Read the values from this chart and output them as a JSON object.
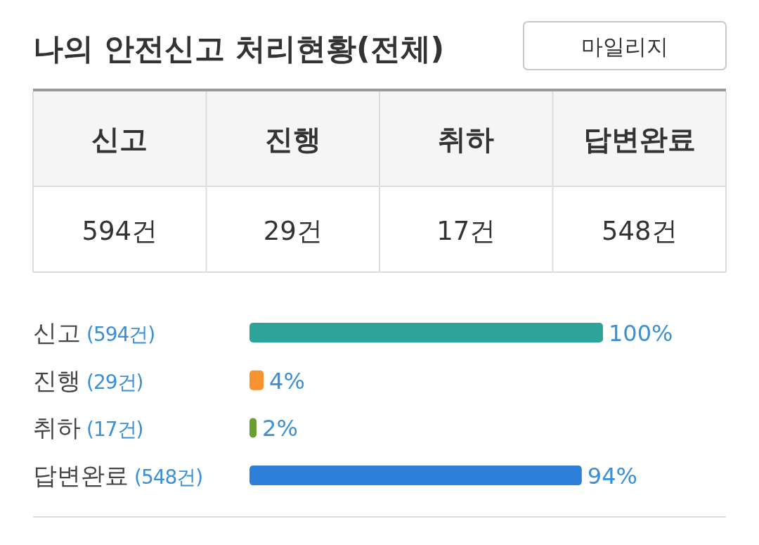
{
  "chart_data": [
    {
      "type": "other",
      "title": "나의 안전신고 처리현황(전체)",
      "categories": [
        "신고",
        "진행",
        "취하",
        "답변완료"
      ],
      "annotations": [
        "마일리지",
        "594건",
        "29건",
        "17건",
        "548건"
      ]
    },
    {
      "type": "bar",
      "orientation": "horizontal",
      "categories": [
        "신고",
        "진행",
        "취하",
        "답변완료"
      ],
      "values": [
        100,
        4,
        2,
        94
      ],
      "xlim": [
        0,
        100
      ],
      "colors": [
        "#2ea39a",
        "#f7932f",
        "#6b9e32",
        "#2d7fd8"
      ],
      "value_labels": [
        "100%",
        "4%",
        "2%",
        "94%"
      ],
      "annotations": [
        "(594건)",
        "(29건)",
        "(17건)",
        "(548건)"
      ]
    }
  ]
}
